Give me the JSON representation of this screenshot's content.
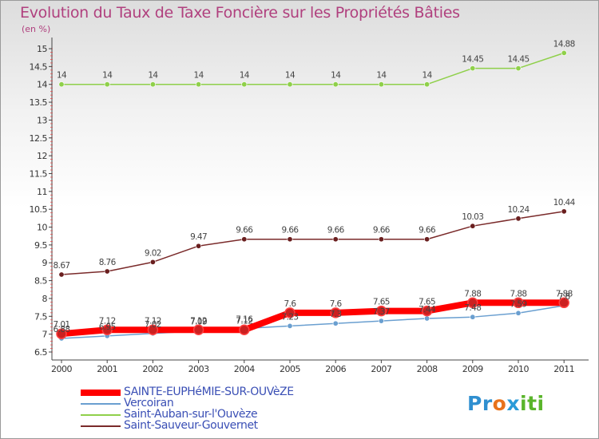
{
  "title": "Evolution du Taux de Taxe Foncière sur les Propriétés Bâties",
  "unit_label": "(en %)",
  "chart_data": {
    "type": "line",
    "x": [
      "2000",
      "2001",
      "2002",
      "2003",
      "2004",
      "2005",
      "2006",
      "2007",
      "2008",
      "2009",
      "2010",
      "2011"
    ],
    "ylim": [
      6.5,
      15
    ],
    "yticks": [
      "6.5",
      "7",
      "7.5",
      "8",
      "8.5",
      "9",
      "9.5",
      "10",
      "10.5",
      "11",
      "11.5",
      "12",
      "12.5",
      "13",
      "13.5",
      "14",
      "14.5",
      "15"
    ],
    "grid": false,
    "legend_position": "bottom-left",
    "series": [
      {
        "name": "SAINTE-EUPHéMIE-SUR-OUVèZE",
        "color": "#ff0000",
        "width": 8,
        "values": [
          7.01,
          7.12,
          7.12,
          7.12,
          7.12,
          7.6,
          7.6,
          7.65,
          7.65,
          7.88,
          7.88,
          7.88
        ],
        "labels": [
          "7.01",
          "7.12",
          "7.12",
          "7.12",
          "7.12",
          "7.6",
          "7.6",
          "7.65",
          "7.65",
          "7.88",
          "7.88",
          "7.88"
        ]
      },
      {
        "name": "Vercoiran",
        "color": "#6a9fd0",
        "width": 1.5,
        "values": [
          6.88,
          6.95,
          7.02,
          7.09,
          7.16,
          7.23,
          7.3,
          7.37,
          7.44,
          7.48,
          7.59,
          7.8
        ],
        "labels": [
          "6.88",
          "6.95",
          "7.02",
          "7.09",
          "7.16",
          "7.23",
          "7.3",
          "7.37",
          "7.44",
          "7.48",
          "7.59",
          "7.8"
        ]
      },
      {
        "name": "Saint-Auban-sur-l'Ouvèze",
        "color": "#8fd04a",
        "width": 1.5,
        "values": [
          14,
          14,
          14,
          14,
          14,
          14,
          14,
          14,
          14,
          14.45,
          14.45,
          14.88
        ],
        "labels": [
          "14",
          "14",
          "14",
          "14",
          "14",
          "14",
          "14",
          "14",
          "14",
          "14.45",
          "14.45",
          "14.88"
        ]
      },
      {
        "name": "Saint-Sauveur-Gouvernet",
        "color": "#7a2a2a",
        "width": 1.5,
        "values": [
          8.67,
          8.76,
          9.02,
          9.47,
          9.66,
          9.66,
          9.66,
          9.66,
          9.66,
          10.03,
          10.24,
          10.44
        ],
        "labels": [
          "8.67",
          "8.76",
          "9.02",
          "9.47",
          "9.66",
          "9.66",
          "9.66",
          "9.66",
          "9.66",
          "10.03",
          "10.24",
          "10.44"
        ]
      }
    ]
  },
  "logo": {
    "text_p": "Pr",
    "text_o": "o",
    "text_x": "x",
    "text_i": "i",
    "text_t": "t",
    "text_i2": "i"
  }
}
